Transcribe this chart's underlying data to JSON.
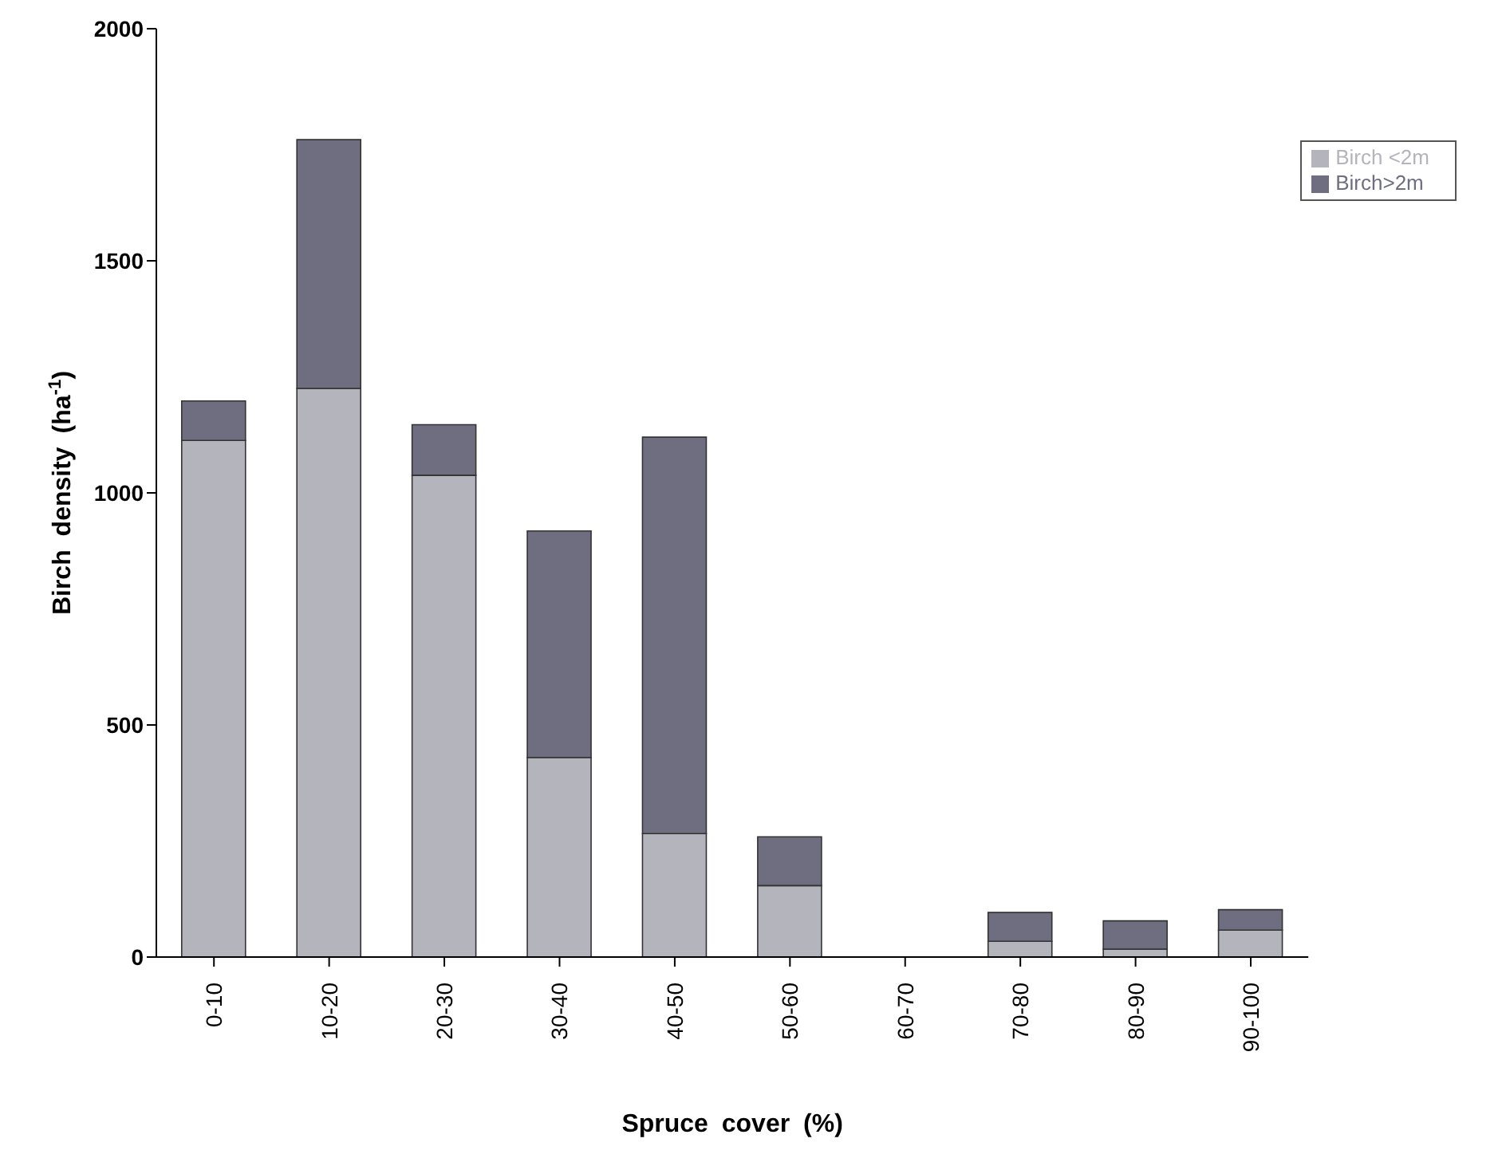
{
  "chart_data": {
    "type": "bar",
    "stacked": true,
    "xlabel": "Spruce cover (%)",
    "ylabel": "Birch density (ha$^{-1}$)",
    "categories": [
      "0-10",
      "10-20",
      "20-30",
      "30-40",
      "40-50",
      "50-60",
      "60-70",
      "70-80",
      "80-90",
      "90-100"
    ],
    "series": [
      {
        "name": "Birch <2m",
        "color": "#b4b4bc",
        "values": [
          1113,
          1225,
          1038,
          430,
          266,
          154,
          0,
          34,
          17,
          58
        ]
      },
      {
        "name": "Birch>2m",
        "color": "#6e6e80",
        "values": [
          85,
          536,
          109,
          488,
          854,
          105,
          0,
          62,
          61,
          44
        ]
      }
    ],
    "ylim": [
      0,
      2000
    ],
    "yticks": [
      0,
      500,
      1000,
      1500,
      2000
    ],
    "grid": false,
    "legend": "top right"
  }
}
